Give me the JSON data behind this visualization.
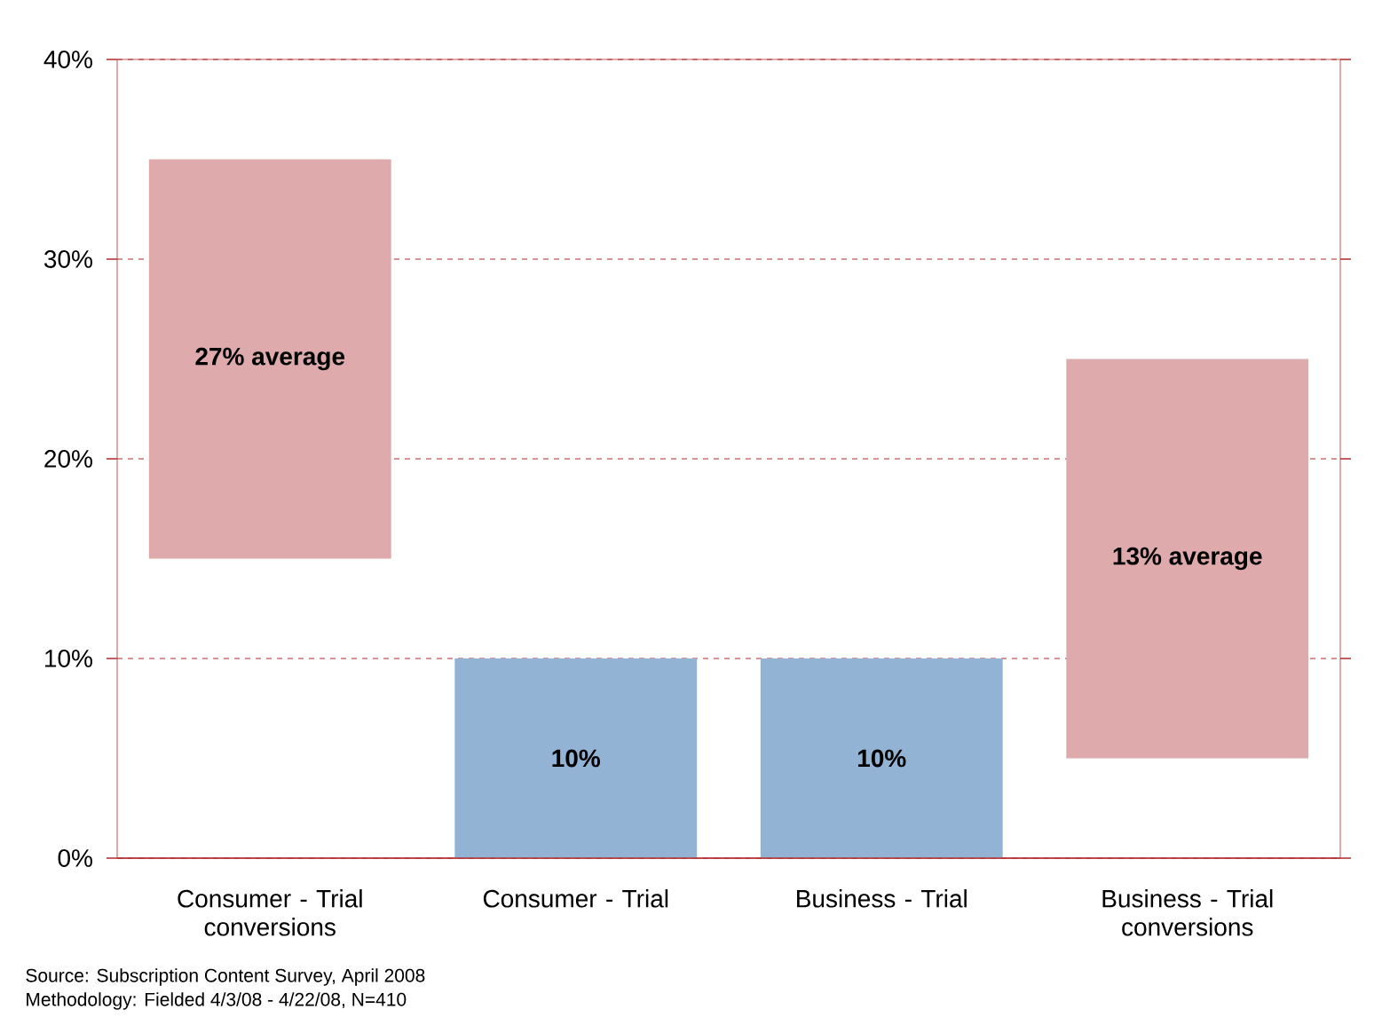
{
  "chart_data": {
    "type": "bar",
    "categories": [
      "Consumer - Trial conversions",
      "Consumer - Trial",
      "Business - Trial",
      "Business - Trial conversions"
    ],
    "values": [
      20,
      10,
      10,
      20
    ],
    "base": [
      15,
      0,
      0,
      5
    ],
    "colors": [
      "#dfaaab",
      "#92b3d4",
      "#92b3d4",
      "#dfaaab"
    ],
    "ylim": [
      0,
      40
    ],
    "yticks": [
      {
        "value": 0,
        "label": "0%"
      },
      {
        "value": 10,
        "label": "10%"
      },
      {
        "value": 20,
        "label": "20%"
      },
      {
        "value": 30,
        "label": "30%"
      },
      {
        "value": 40,
        "label": "40%"
      }
    ],
    "grid": "y",
    "annotations": [
      "**27% average**",
      "**10%**",
      "**10%**",
      "**13% average**",
      "Source: Subscription Content Survey, April 2008",
      "Methodology: Fielded 4/3/08 - 4/22/08, N=410"
    ]
  }
}
